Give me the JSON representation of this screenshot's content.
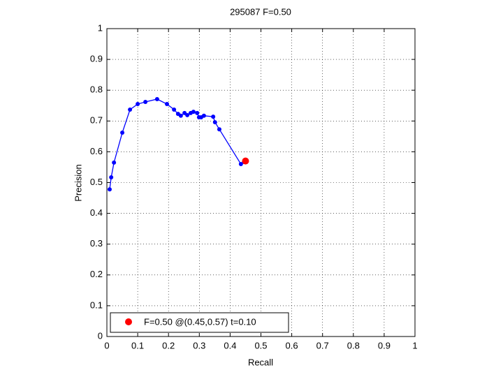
{
  "chart_data": {
    "type": "line",
    "title": "295087 F=0.50",
    "x_label": "Recall",
    "y_label": "Precision",
    "xlim": [
      0,
      1
    ],
    "ylim": [
      0,
      1
    ],
    "xticks": [
      0,
      0.1,
      0.2,
      0.3,
      0.4,
      0.5,
      0.6,
      0.7,
      0.8,
      0.9,
      1
    ],
    "yticks": [
      0,
      0.1,
      0.2,
      0.3,
      0.4,
      0.5,
      0.6,
      0.7,
      0.8,
      0.9,
      1
    ],
    "grid": true,
    "legend": "lower left",
    "series": [
      {
        "color": "#0000ff",
        "x": [
          0.009,
          0.014,
          0.023,
          0.05,
          0.075,
          0.1,
          0.125,
          0.163,
          0.195,
          0.218,
          0.231,
          0.24,
          0.252,
          0.261,
          0.272,
          0.281,
          0.293,
          0.299,
          0.306,
          0.315,
          0.345,
          0.351,
          0.365,
          0.435,
          0.445
        ],
        "values": [
          0.478,
          0.517,
          0.565,
          0.662,
          0.737,
          0.755,
          0.762,
          0.771,
          0.755,
          0.737,
          0.723,
          0.717,
          0.726,
          0.719,
          0.726,
          0.73,
          0.726,
          0.712,
          0.712,
          0.717,
          0.714,
          0.696,
          0.673,
          0.56,
          0.567
        ]
      },
      {
        "name": "F=0.50 @(0.45,0.57) t=0.10",
        "color": "#ff0000",
        "x": [
          0.45
        ],
        "values": [
          0.57
        ]
      }
    ]
  }
}
